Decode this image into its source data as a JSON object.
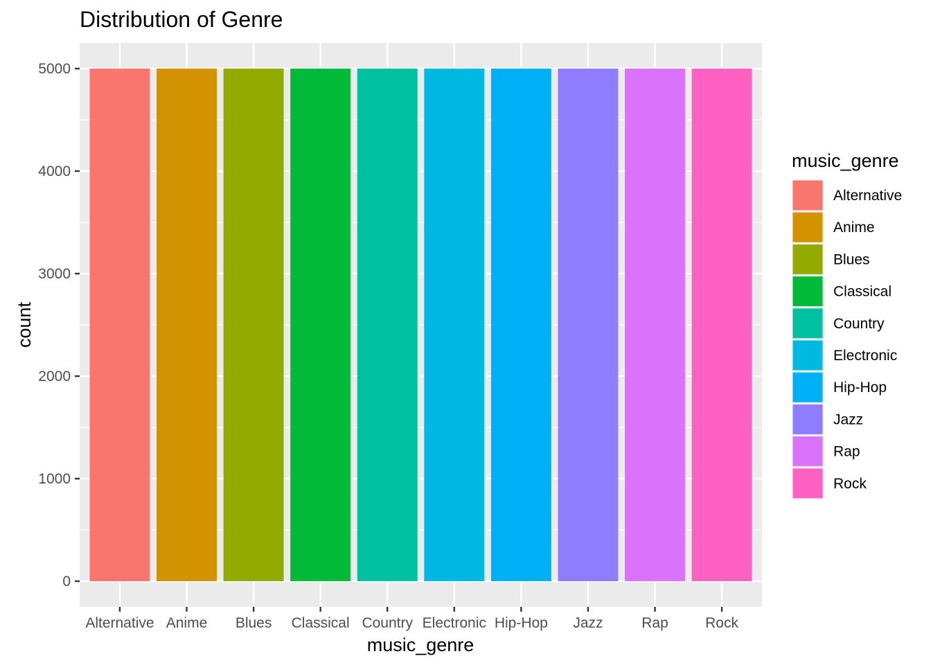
{
  "chart_data": {
    "type": "bar",
    "title": "Distribution of Genre",
    "xlabel": "music_genre",
    "ylabel": "count",
    "categories": [
      "Alternative",
      "Anime",
      "Blues",
      "Classical",
      "Country",
      "Electronic",
      "Hip-Hop",
      "Jazz",
      "Rap",
      "Rock"
    ],
    "values": [
      5000,
      5000,
      5000,
      5000,
      5000,
      5000,
      5000,
      5000,
      5000,
      5000
    ],
    "colors": [
      "#F8766D",
      "#D39200",
      "#93AA00",
      "#00BA38",
      "#00C19F",
      "#00B9E3",
      "#00B0F6",
      "#8F7CFF",
      "#DB72FB",
      "#FF61C3"
    ],
    "yticks": [
      0,
      1000,
      2000,
      3000,
      4000,
      5000
    ],
    "ylim": [
      -250,
      5250
    ],
    "grid": true,
    "legend": {
      "title": "music_genre",
      "placement": "right"
    }
  }
}
